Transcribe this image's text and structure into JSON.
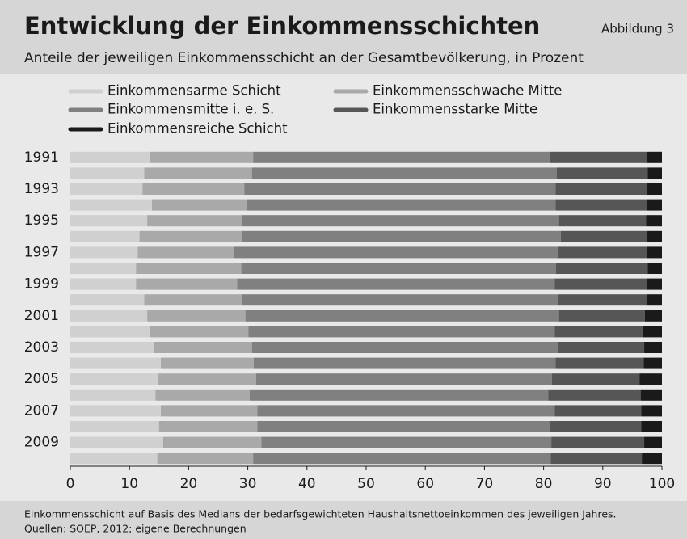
{
  "chart_data": {
    "type": "stacked-bar-horizontal",
    "title": "Entwicklung der Einkommensschichten",
    "figure_label": "Abbildung 3",
    "subtitle": "Anteile der jeweiligen Einkommensschicht an der Gesamtbevölkerung, in Prozent",
    "notes": [
      "Einkommensschicht auf Basis des Medians der bedarfsgewichteten Haushaltsnettoeinkommen des jeweiligen Jahres.",
      "Quellen: SOEP, 2012; eigene Berechnungen"
    ],
    "categories": [
      "1991",
      null,
      "1993",
      null,
      "1995",
      null,
      "1997",
      null,
      "1999",
      null,
      "2001",
      null,
      "2003",
      null,
      "2005",
      null,
      "2007",
      null,
      "2009",
      null
    ],
    "series": [
      {
        "name": "Einkommensarme Schicht",
        "color": "#d0d0d0",
        "values": [
          13.4,
          12.5,
          12.2,
          13.8,
          13.0,
          11.7,
          11.4,
          11.1,
          11.1,
          12.5,
          13.0,
          13.4,
          14.1,
          15.3,
          14.9,
          14.4,
          15.3,
          15.0,
          15.7,
          14.7
        ]
      },
      {
        "name": "Einkommensschwache Mitte",
        "color": "#a9a9a9",
        "values": [
          17.5,
          18.2,
          17.2,
          16.0,
          16.1,
          17.4,
          16.3,
          17.8,
          17.1,
          16.6,
          16.6,
          16.7,
          16.6,
          15.7,
          16.5,
          15.9,
          16.3,
          16.6,
          16.6,
          16.2
        ]
      },
      {
        "name": "Einkommensmitte i. e. S.",
        "color": "#808080",
        "values": [
          50.1,
          51.5,
          52.6,
          52.2,
          53.5,
          53.8,
          54.7,
          53.2,
          53.7,
          53.3,
          53.0,
          51.8,
          51.7,
          51.0,
          50.0,
          50.5,
          50.3,
          49.5,
          49.0,
          50.3
        ]
      },
      {
        "name": "Einkommensstarke Mitte",
        "color": "#565656",
        "values": [
          16.5,
          15.4,
          15.4,
          15.5,
          14.7,
          14.5,
          15.0,
          15.5,
          15.6,
          15.1,
          14.5,
          14.8,
          14.6,
          14.9,
          14.8,
          15.6,
          14.6,
          15.4,
          15.7,
          15.4
        ]
      },
      {
        "name": "Einkommensreiche Schicht",
        "color": "#1a1a1a",
        "values": [
          2.5,
          2.4,
          2.6,
          2.5,
          2.7,
          2.6,
          2.6,
          2.4,
          2.5,
          2.5,
          2.9,
          3.3,
          3.0,
          3.1,
          3.8,
          3.6,
          3.5,
          3.5,
          3.0,
          3.4
        ]
      }
    ],
    "xlim": [
      0,
      100
    ],
    "xticks": [
      0,
      10,
      20,
      30,
      40,
      50,
      60,
      70,
      80,
      90,
      100
    ]
  }
}
